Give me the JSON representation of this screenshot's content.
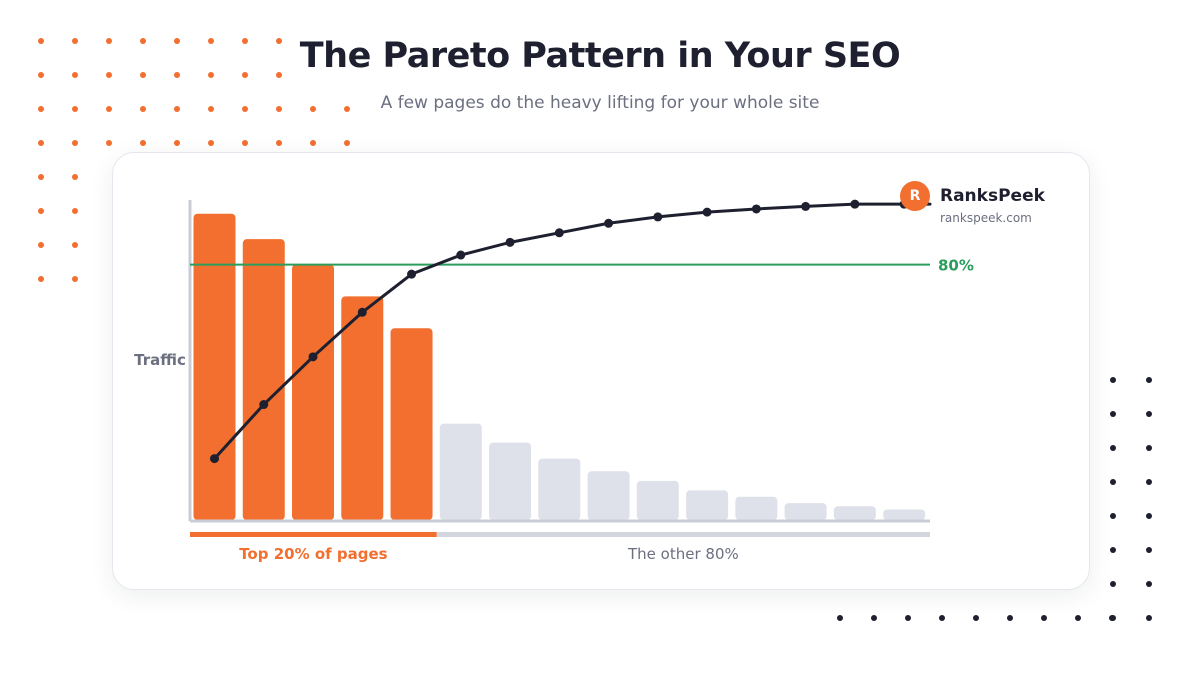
{
  "header": {
    "title": "The Pareto Pattern in Your SEO",
    "subtitle": "A few pages do the heavy lifting for your whole site"
  },
  "brand": {
    "badge_letter": "R",
    "name": "RanksPeek",
    "url": "rankspeek.com"
  },
  "colors": {
    "accent": "#f26f2f",
    "muted_bar": "#dfe1ea",
    "line": "#1e2030",
    "threshold": "#2a9d5c",
    "text_dark": "#1e2030",
    "text_muted": "#6b6f80"
  },
  "chart_data": {
    "type": "bar",
    "ylabel": "Traffic",
    "ylim": [
      0,
      100
    ],
    "values": [
      96,
      88,
      80,
      70,
      60,
      30,
      24,
      19,
      15,
      12,
      9,
      7,
      5,
      4,
      3
    ],
    "highlight_count": 5,
    "cumulative_line": {
      "values": [
        19,
        36,
        51,
        65,
        77,
        83,
        87,
        90,
        93,
        95,
        96.5,
        97.5,
        98.3,
        99,
        99
      ],
      "extend_to_end": true
    },
    "threshold": {
      "value": 80,
      "label": "80%"
    },
    "groups": [
      {
        "label": "Top 20% of pages",
        "count": 5,
        "highlight": true
      },
      {
        "label": "The other 80%",
        "count": 10,
        "highlight": false
      }
    ],
    "grid": false
  }
}
